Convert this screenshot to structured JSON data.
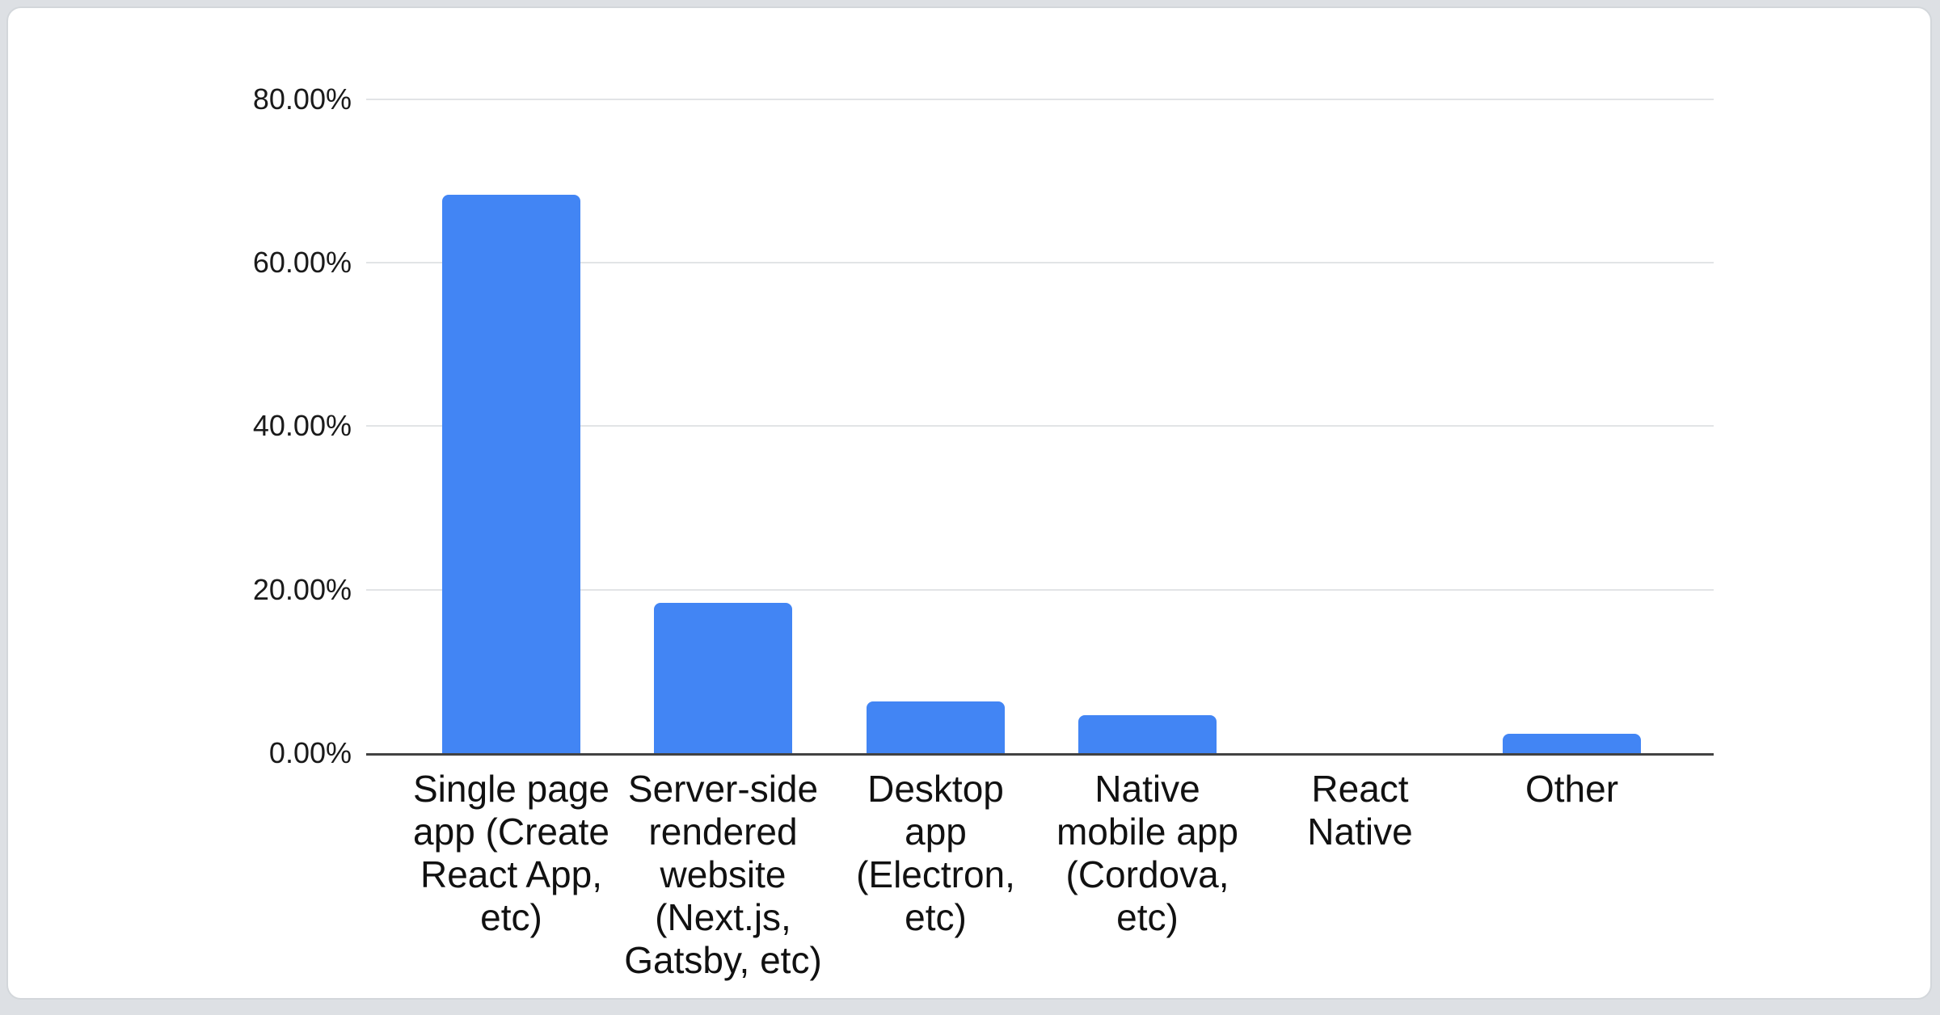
{
  "page": {
    "background_color": "#dde0e4",
    "card_background": "#ffffff",
    "card_border_color": "#d3d7db"
  },
  "chart_data": {
    "type": "bar",
    "title": "",
    "categories": [
      "Single page app (Create React App, etc)",
      "Server-side rendered website (Next.js, Gatsby, etc)",
      "Desktop app (Electron, etc)",
      "Native mobile app (Cordova, etc)",
      "React Native",
      "Other"
    ],
    "values": [
      68.3,
      18.4,
      6.3,
      4.6,
      0,
      2.4
    ],
    "value_unit": "%",
    "bar_color": "#4285f4",
    "ylim": [
      0,
      80
    ],
    "y_ticks": [
      {
        "value": 80,
        "label": "80.00%"
      },
      {
        "value": 60,
        "label": "60.00%"
      },
      {
        "value": 40,
        "label": "40.00%"
      },
      {
        "value": 20,
        "label": "20.00%"
      },
      {
        "value": 0,
        "label": "0.00%"
      }
    ],
    "grid": true,
    "legend_position": "none",
    "gridline_color": "#e2e4e6",
    "axis_line_color": "#424242",
    "text_color": "#111111"
  },
  "x_axis": {
    "tick_lines": [
      [
        "Single page",
        "app (Create",
        "React App,",
        "etc)"
      ],
      [
        "Server-side",
        "rendered",
        "website",
        "(Next.js,",
        "Gatsby, etc)"
      ],
      [
        "Desktop",
        "app",
        "(Electron,",
        "etc)"
      ],
      [
        "Native",
        "mobile app",
        "(Cordova,",
        "etc)"
      ],
      [
        "React",
        "Native"
      ],
      [
        "Other"
      ]
    ]
  }
}
